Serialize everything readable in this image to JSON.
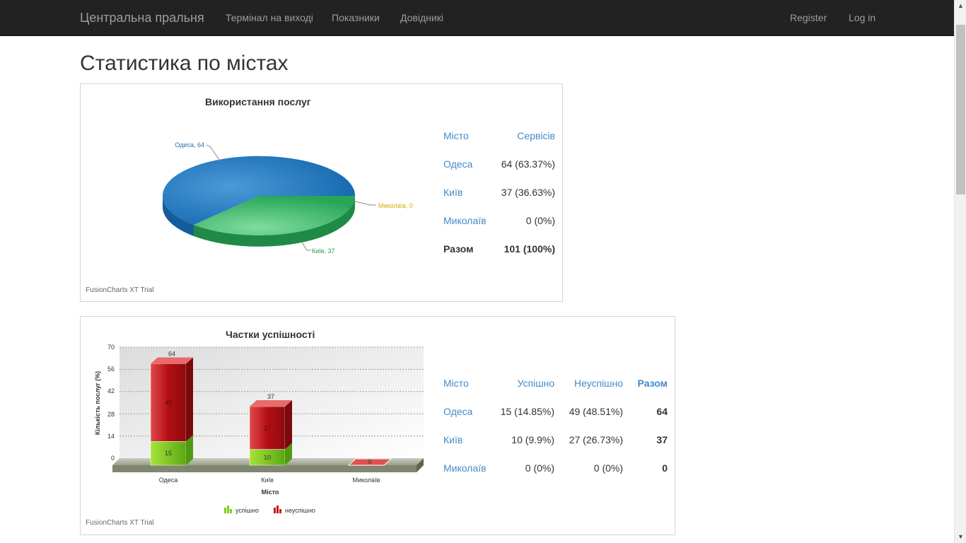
{
  "navbar": {
    "brand": "Центральна пральня",
    "links": [
      "Термінал на виході",
      "Показники",
      "Довідникі"
    ],
    "register": "Register",
    "login": "Log in"
  },
  "page": {
    "title": "Статистика по містах"
  },
  "usage": {
    "chart_title": "Використання послуг",
    "trial": "FusionCharts XT Trial",
    "slice_labels": [
      "Одеса, 64",
      "Київ, 37",
      "Миколаїв, 0"
    ],
    "table": {
      "headers": [
        "Місто",
        "Сервісів"
      ],
      "rows": [
        {
          "city": "Одеса",
          "value": "64 (63.37%)"
        },
        {
          "city": "Київ",
          "value": "37 (36.63%)"
        },
        {
          "city": "Миколаїв",
          "value": "0 (0%)"
        }
      ],
      "total_label": "Разом",
      "total_value": "101 (100%)"
    },
    "colors": {
      "odesa": "#1f7ac4",
      "kyiv": "#3fbf6b",
      "mykolaiv": "#f2c300"
    }
  },
  "success": {
    "chart_title": "Частки успішності",
    "y_axis_label": "Кількість послуг (%)",
    "x_axis_label": "Місто",
    "y_ticks": [
      "70",
      "56",
      "42",
      "28",
      "14",
      "0"
    ],
    "categories": [
      "Одеса",
      "Київ",
      "Миколаїв"
    ],
    "bar_totals": [
      "64",
      "37",
      "0"
    ],
    "success_values": [
      "15",
      "10"
    ],
    "fail_values": [
      "49",
      "27"
    ],
    "legend": [
      "успішно",
      "неуспішно"
    ],
    "trial": "FusionCharts XT Trial",
    "table": {
      "headers": [
        "Місто",
        "Успішно",
        "Неуспішно",
        "Разом"
      ],
      "rows": [
        {
          "city": "Одеса",
          "ok": "15 (14.85%)",
          "fail": "49 (48.51%)",
          "total": "64"
        },
        {
          "city": "Київ",
          "ok": "10 (9.9%)",
          "fail": "27 (26.73%)",
          "total": "37"
        },
        {
          "city": "Миколаїв",
          "ok": "0 (0%)",
          "fail": "0 (0%)",
          "total": "0"
        }
      ]
    },
    "colors": {
      "success": "#7fcf1f",
      "fail": "#c8181d"
    }
  },
  "chart_data": [
    {
      "type": "pie",
      "title": "Використання послуг",
      "categories": [
        "Одеса",
        "Київ",
        "Миколаїв"
      ],
      "values": [
        64,
        37,
        0
      ]
    },
    {
      "type": "bar",
      "title": "Частки успішності",
      "xlabel": "Місто",
      "ylabel": "Кількість послуг (%)",
      "ylim": [
        0,
        70
      ],
      "stacked": true,
      "categories": [
        "Одеса",
        "Київ",
        "Миколаїв"
      ],
      "series": [
        {
          "name": "успішно",
          "values": [
            15,
            10,
            0
          ]
        },
        {
          "name": "неуспішно",
          "values": [
            49,
            27,
            0
          ]
        }
      ],
      "legend": "bottom"
    }
  ]
}
